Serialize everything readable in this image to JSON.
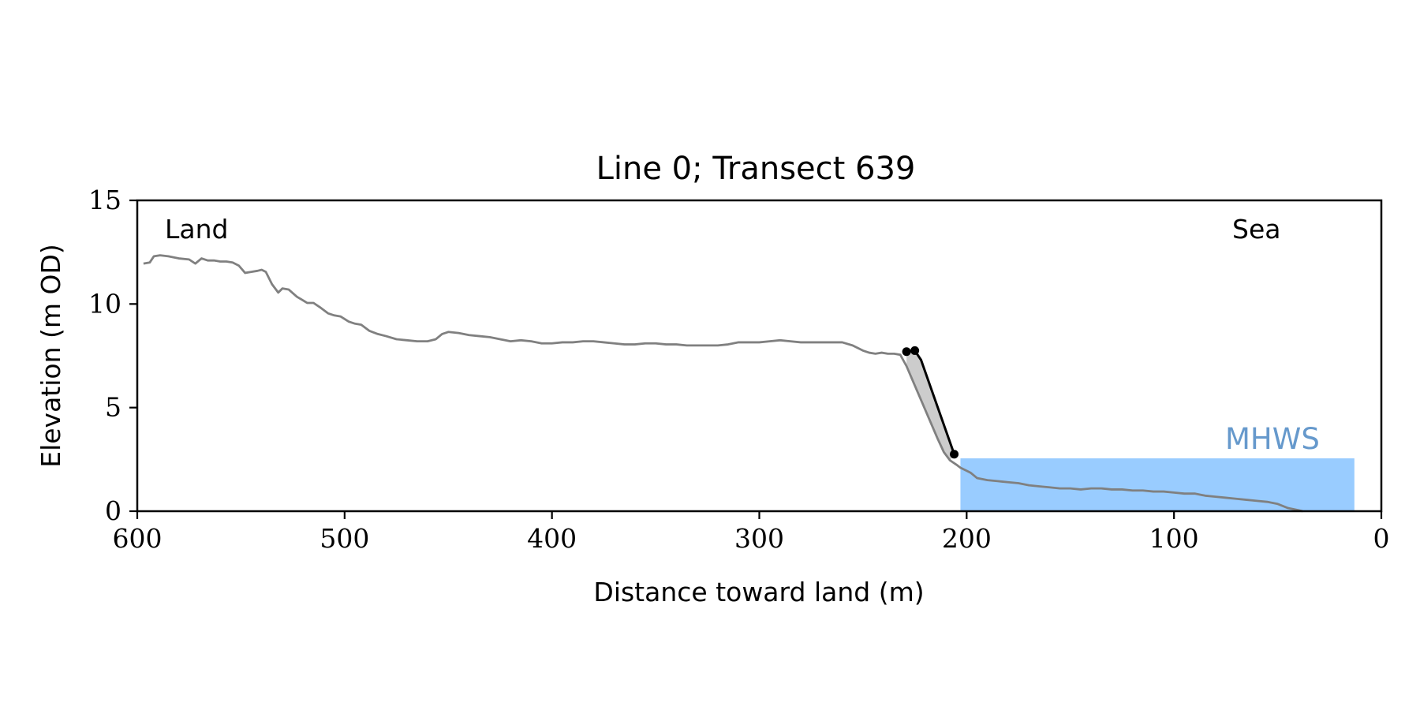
{
  "chart_data": {
    "type": "line",
    "title": "Line 0; Transect 639",
    "xlabel": "Distance toward land (m)",
    "ylabel": "Elevation (m OD)",
    "xlim": [
      600,
      0
    ],
    "ylim": [
      0,
      15
    ],
    "x_reversed": true,
    "xticks": [
      600,
      500,
      400,
      300,
      200,
      100,
      0
    ],
    "yticks": [
      0,
      5,
      10,
      15
    ],
    "grid": false,
    "annotations": {
      "land": "Land",
      "sea": "Sea",
      "mhws": "MHWS"
    },
    "colors": {
      "profile": "#808080",
      "cliff": "#000000",
      "eroded_fill": "#cccccc",
      "mhws_fill": "#99ccff",
      "mhws_label": "#6699cc"
    },
    "mhws": {
      "elevation": 2.55,
      "x_start": 203,
      "x_end": 13
    },
    "profile": {
      "x": [
        597,
        594,
        592,
        589,
        585,
        580,
        575,
        572,
        569,
        566,
        563,
        560,
        557,
        554,
        551,
        548,
        545,
        542,
        540,
        538,
        535,
        532,
        530,
        527,
        523,
        518,
        515,
        512,
        508,
        505,
        502,
        498,
        495,
        492,
        488,
        484,
        480,
        475,
        470,
        465,
        460,
        456,
        453,
        450,
        445,
        440,
        435,
        430,
        425,
        420,
        415,
        410,
        405,
        400,
        395,
        390,
        385,
        380,
        375,
        370,
        365,
        360,
        355,
        350,
        345,
        340,
        335,
        330,
        325,
        320,
        315,
        310,
        305,
        300,
        295,
        290,
        285,
        280,
        275,
        270,
        265,
        260,
        255,
        250,
        247,
        244,
        241,
        238,
        235,
        232,
        229,
        226,
        223,
        220,
        217,
        214,
        211,
        208,
        205,
        203,
        200,
        198,
        195,
        190,
        185,
        180,
        175,
        170,
        165,
        160,
        155,
        150,
        145,
        140,
        135,
        130,
        125,
        120,
        115,
        110,
        105,
        100,
        95,
        90,
        85,
        80,
        75,
        70,
        65,
        60,
        55,
        50,
        45,
        40,
        38
      ],
      "y": [
        11.95,
        12.0,
        12.3,
        12.35,
        12.3,
        12.2,
        12.15,
        11.95,
        12.2,
        12.1,
        12.1,
        12.05,
        12.05,
        12.0,
        11.85,
        11.5,
        11.55,
        11.6,
        11.65,
        11.55,
        10.95,
        10.55,
        10.75,
        10.7,
        10.35,
        10.05,
        10.05,
        9.85,
        9.55,
        9.45,
        9.4,
        9.15,
        9.05,
        9.0,
        8.7,
        8.55,
        8.45,
        8.3,
        8.25,
        8.2,
        8.2,
        8.3,
        8.55,
        8.65,
        8.6,
        8.5,
        8.45,
        8.4,
        8.3,
        8.2,
        8.25,
        8.2,
        8.1,
        8.1,
        8.15,
        8.15,
        8.2,
        8.2,
        8.15,
        8.1,
        8.05,
        8.05,
        8.1,
        8.1,
        8.05,
        8.05,
        8.0,
        8.0,
        8.0,
        8.0,
        8.05,
        8.15,
        8.15,
        8.15,
        8.2,
        8.25,
        8.2,
        8.15,
        8.15,
        8.15,
        8.15,
        8.15,
        8.0,
        7.75,
        7.65,
        7.6,
        7.65,
        7.6,
        7.6,
        7.55,
        7.0,
        6.3,
        5.6,
        4.9,
        4.2,
        3.5,
        2.85,
        2.45,
        2.25,
        2.1,
        1.95,
        1.85,
        1.6,
        1.5,
        1.45,
        1.4,
        1.35,
        1.25,
        1.2,
        1.15,
        1.1,
        1.1,
        1.05,
        1.1,
        1.1,
        1.05,
        1.05,
        1.0,
        1.0,
        0.95,
        0.95,
        0.9,
        0.85,
        0.85,
        0.75,
        0.7,
        0.65,
        0.6,
        0.55,
        0.5,
        0.45,
        0.35,
        0.15,
        0.05,
        0.0
      ]
    },
    "cliff_line": {
      "x": [
        229,
        225,
        222,
        206
      ],
      "y": [
        7.7,
        7.75,
        7.3,
        2.75
      ]
    },
    "cliff_points": {
      "x": [
        229,
        225,
        206
      ],
      "y": [
        7.7,
        7.75,
        2.75
      ]
    }
  }
}
